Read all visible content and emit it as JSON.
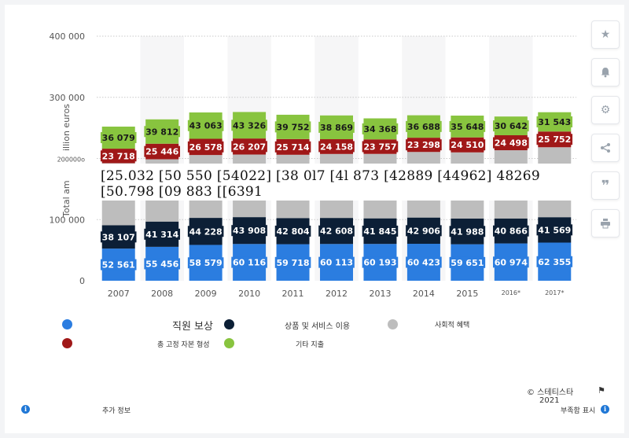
{
  "chart_data": {
    "type": "bar",
    "stacked": true,
    "categories": [
      "2007",
      "2008",
      "2009",
      "2010",
      "2011",
      "2012",
      "2013",
      "2014",
      "2015",
      "2016*",
      "2017*"
    ],
    "ylabel_parts": [
      "Total am",
      "illion euros"
    ],
    "yticks": [
      "0",
      "100 000",
      "200000o",
      "300 000",
      "400 000"
    ],
    "ylim": [
      0,
      400000
    ],
    "grid": true,
    "series": [
      {
        "name": "직원 보상",
        "color": "#2b7de0",
        "values": [
          52561,
          55456,
          58579,
          60116,
          59718,
          60113,
          60193,
          60423,
          59651,
          60974,
          62355
        ],
        "labels": [
          "52 561",
          "55 456",
          "58 579",
          "60 116",
          "59 718",
          "60 113",
          "60 193",
          "60 423",
          "59 651",
          "60 974",
          "62 355"
        ]
      },
      {
        "name": "상품 및 서비스 이용",
        "color": "#0c1f36",
        "values": [
          38107,
          41314,
          44228,
          43908,
          42804,
          42608,
          41845,
          42906,
          41988,
          40866,
          41569
        ],
        "labels": [
          "38 107",
          "41 314",
          "44 228",
          "43 908",
          "42 804",
          "42 608",
          "41 845",
          "42 906",
          "41 988",
          "40 866",
          "41 569"
        ]
      },
      {
        "name": "사회적 혜택",
        "color": "#bdbdbd",
        "values": [
          101600,
          101900,
          102800,
          102400,
          103500,
          104600,
          105400,
          107300,
          108300,
          111600,
          114400
        ],
        "labels": [
          "",
          "",
          "",
          "",
          "",
          "",
          "",
          "",
          "",
          "",
          ""
        ]
      },
      {
        "name": "총 고정 자본 형성",
        "color": "#a01818",
        "values": [
          23718,
          25446,
          26578,
          26207,
          25714,
          24158,
          23757,
          23298,
          24510,
          24498,
          25752
        ],
        "labels": [
          "23 718",
          "25 446",
          "26 578",
          "26 207",
          "25 714",
          "24 158",
          "23 757",
          "23 298",
          "24 510",
          "24 498",
          "25 752"
        ]
      },
      {
        "name": "기타 지출",
        "color": "#88c43f",
        "values": [
          36079,
          39812,
          43063,
          43326,
          39752,
          38869,
          34368,
          36688,
          35648,
          30642,
          31543
        ],
        "labels": [
          "36 079",
          "39 812",
          "43 063",
          "43 326",
          "39 752",
          "38 869",
          "34 368",
          "36 688",
          "35 648",
          "30 642",
          "31 543"
        ]
      }
    ]
  },
  "overlay_text": "[25.032 [50 550 [54022] [38 0l7 [4l 873 [42889 [44962] 48269 [50.798 [09 883 [[6391",
  "legend": [
    {
      "label": "직원 보상",
      "color": "#2b7de0"
    },
    {
      "label": "상품 및 서비스 이용",
      "color": "#0c1f36"
    },
    {
      "label": "사회적 혜택",
      "color": "#bdbdbd"
    },
    {
      "label": "총 고정 자본 형성",
      "color": "#a01818"
    },
    {
      "label": "기타 지출",
      "color": "#88c43f"
    }
  ],
  "footer": {
    "source": "© 스테티스타",
    "year": "2021",
    "more_info": "추가 정보",
    "report": "부족함 표시"
  },
  "sidebar_icons": [
    "star-icon",
    "bell-icon",
    "gear-icon",
    "share-icon",
    "quote-icon",
    "print-icon"
  ]
}
